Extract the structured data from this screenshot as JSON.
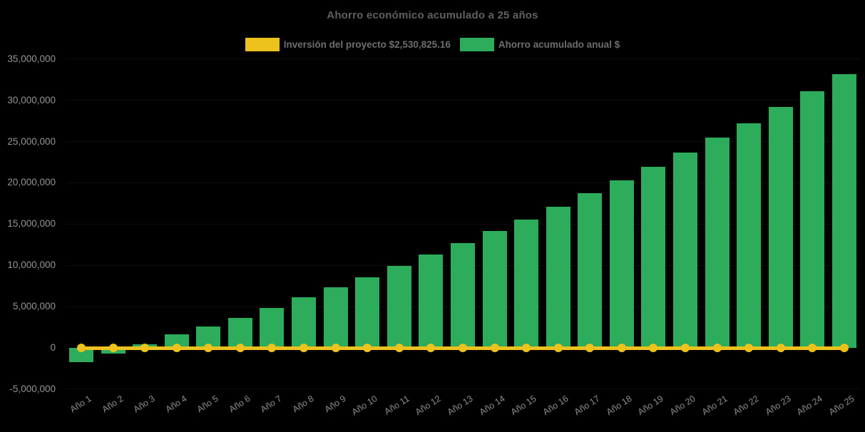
{
  "title": "Ahorro económico acumulado a 25 años",
  "legend": [
    {
      "label": "Inversión del proyecto $2,530,825.16",
      "color": "#EDC21C"
    },
    {
      "label": "Ahorro acumulado anual $",
      "color": "#2DAC5C"
    }
  ],
  "colors": {
    "background": "#000000",
    "bar_green": "#2DAC5C",
    "line_yellow": "#EDC21C",
    "title_text": "#606060",
    "legend_text": "#6e6e6e",
    "tick_text": "#949494"
  },
  "chart_data": {
    "type": "bar",
    "title": "Ahorro económico acumulado a 25 años",
    "categories": [
      "Año 1",
      "Año 2",
      "Año 3",
      "Año 4",
      "Año 5",
      "Año 6",
      "Año 7",
      "Año 8",
      "Año 9",
      "Año 10",
      "Año 11",
      "Año 12",
      "Año 13",
      "Año 14",
      "Año 15",
      "Año 16",
      "Año 17",
      "Año 18",
      "Año 19",
      "Año 20",
      "Año 21",
      "Año 22",
      "Año 23",
      "Año 24",
      "Año 25"
    ],
    "series": [
      {
        "name": "Ahorro acumulado anual $",
        "type": "bar",
        "color": "#2DAC5C",
        "values": [
          -1700000,
          -650000,
          450000,
          1650000,
          2600000,
          3650000,
          4850000,
          6150000,
          7350000,
          8550000,
          9950000,
          11300000,
          12700000,
          14200000,
          15550000,
          17100000,
          18750000,
          20300000,
          21950000,
          23700000,
          25500000,
          27200000,
          29200000,
          31100000,
          33200000
        ]
      },
      {
        "name": "Inversión del proyecto $2,530,825.16",
        "type": "line",
        "color": "#EDC21C",
        "point_style": "circle",
        "values": [
          0,
          0,
          0,
          0,
          0,
          0,
          0,
          0,
          0,
          0,
          0,
          0,
          0,
          0,
          0,
          0,
          0,
          0,
          0,
          0,
          0,
          0,
          0,
          0,
          0
        ]
      }
    ],
    "xlabel": "",
    "ylabel": "",
    "ylim": [
      -5000000,
      35000000
    ],
    "ytick_step": 5000000,
    "ytick_labels": [
      "35,000,000",
      "30,000,000",
      "25,000,000",
      "20,000,000",
      "15,000,000",
      "10,000,000",
      "5,000,000",
      "0",
      "-5,000,000"
    ],
    "ytick_values": [
      35000000,
      30000000,
      25000000,
      20000000,
      15000000,
      10000000,
      5000000,
      0,
      -5000000
    ],
    "grid": "horizontal-subtle",
    "legend_position": "top-center",
    "x_label_rotation_deg": -33
  }
}
